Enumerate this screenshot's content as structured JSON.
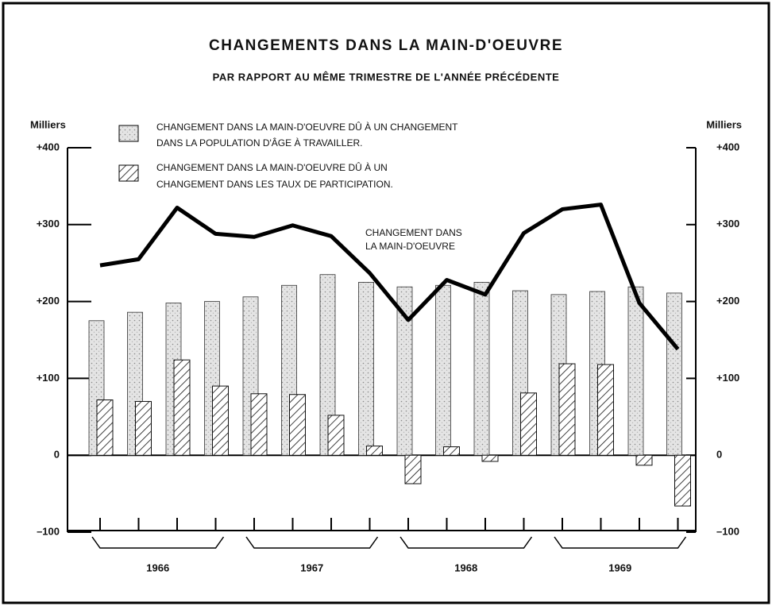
{
  "chart_data": {
    "type": "bar-line",
    "title": "CHANGEMENTS DANS LA MAIN-D'OEUVRE",
    "subtitle": "PAR RAPPORT AU MÊME TRIMESTRE DE L'ANNÉE PRÉCÉDENTE",
    "ylabel": "Milliers",
    "y2label": "Milliers",
    "annotation": [
      "CHANGEMENT DANS",
      "LA MAIN-D'OEUVRE"
    ],
    "categories": [
      null,
      null,
      null,
      null,
      null,
      null,
      null,
      null,
      null,
      null,
      null,
      null,
      null,
      null,
      null,
      null
    ],
    "year_labels": [
      "1966",
      "1967",
      "1968",
      "1969"
    ],
    "series": [
      {
        "name": [
          "CHANGEMENT DANS LA MAIN-D'OEUVRE DÛ À UN CHANGEMENT",
          "DANS LA POPULATION D'ÂGE À TRAVAILLER."
        ],
        "kind": "bar",
        "color": "#e4e4e4",
        "values": [
          175,
          186,
          198,
          200,
          206,
          221,
          235,
          225,
          219,
          221,
          225,
          214,
          209,
          213,
          219,
          211
        ]
      },
      {
        "name": [
          "CHANGEMENT DANS LA MAIN-D'OEUVRE DÛ À UN",
          "CHANGEMENT DANS LES TAUX DE PARTICIPATION."
        ],
        "kind": "hatched-bar",
        "color": "#111111",
        "values": [
          72,
          70,
          124,
          90,
          80,
          79,
          52,
          12,
          -37,
          11,
          -8,
          81,
          119,
          118,
          -13,
          -66
        ]
      },
      {
        "kind": "line",
        "color": "#000000",
        "values": [
          247,
          255,
          322,
          288,
          284,
          299,
          285,
          237,
          176,
          228,
          209,
          289,
          320,
          326,
          198,
          138
        ]
      }
    ],
    "ylim": [
      -100,
      400
    ],
    "yticks": [
      {
        "value": -100,
        "label": "–100"
      },
      0,
      {
        "value": 100,
        "label": "+100"
      },
      {
        "value": 200,
        "label": "+200"
      },
      {
        "value": 300,
        "label": "+300"
      },
      {
        "value": 400,
        "label": "+400"
      }
    ],
    "y2lim": [
      -100,
      400
    ],
    "y2ticks": [
      {
        "value": -100,
        "label": "–100"
      },
      0,
      {
        "value": 100,
        "label": "+100"
      },
      {
        "value": 200,
        "label": "+200"
      },
      {
        "value": 300,
        "label": "+300"
      },
      {
        "value": 400,
        "label": "+400"
      }
    ]
  }
}
